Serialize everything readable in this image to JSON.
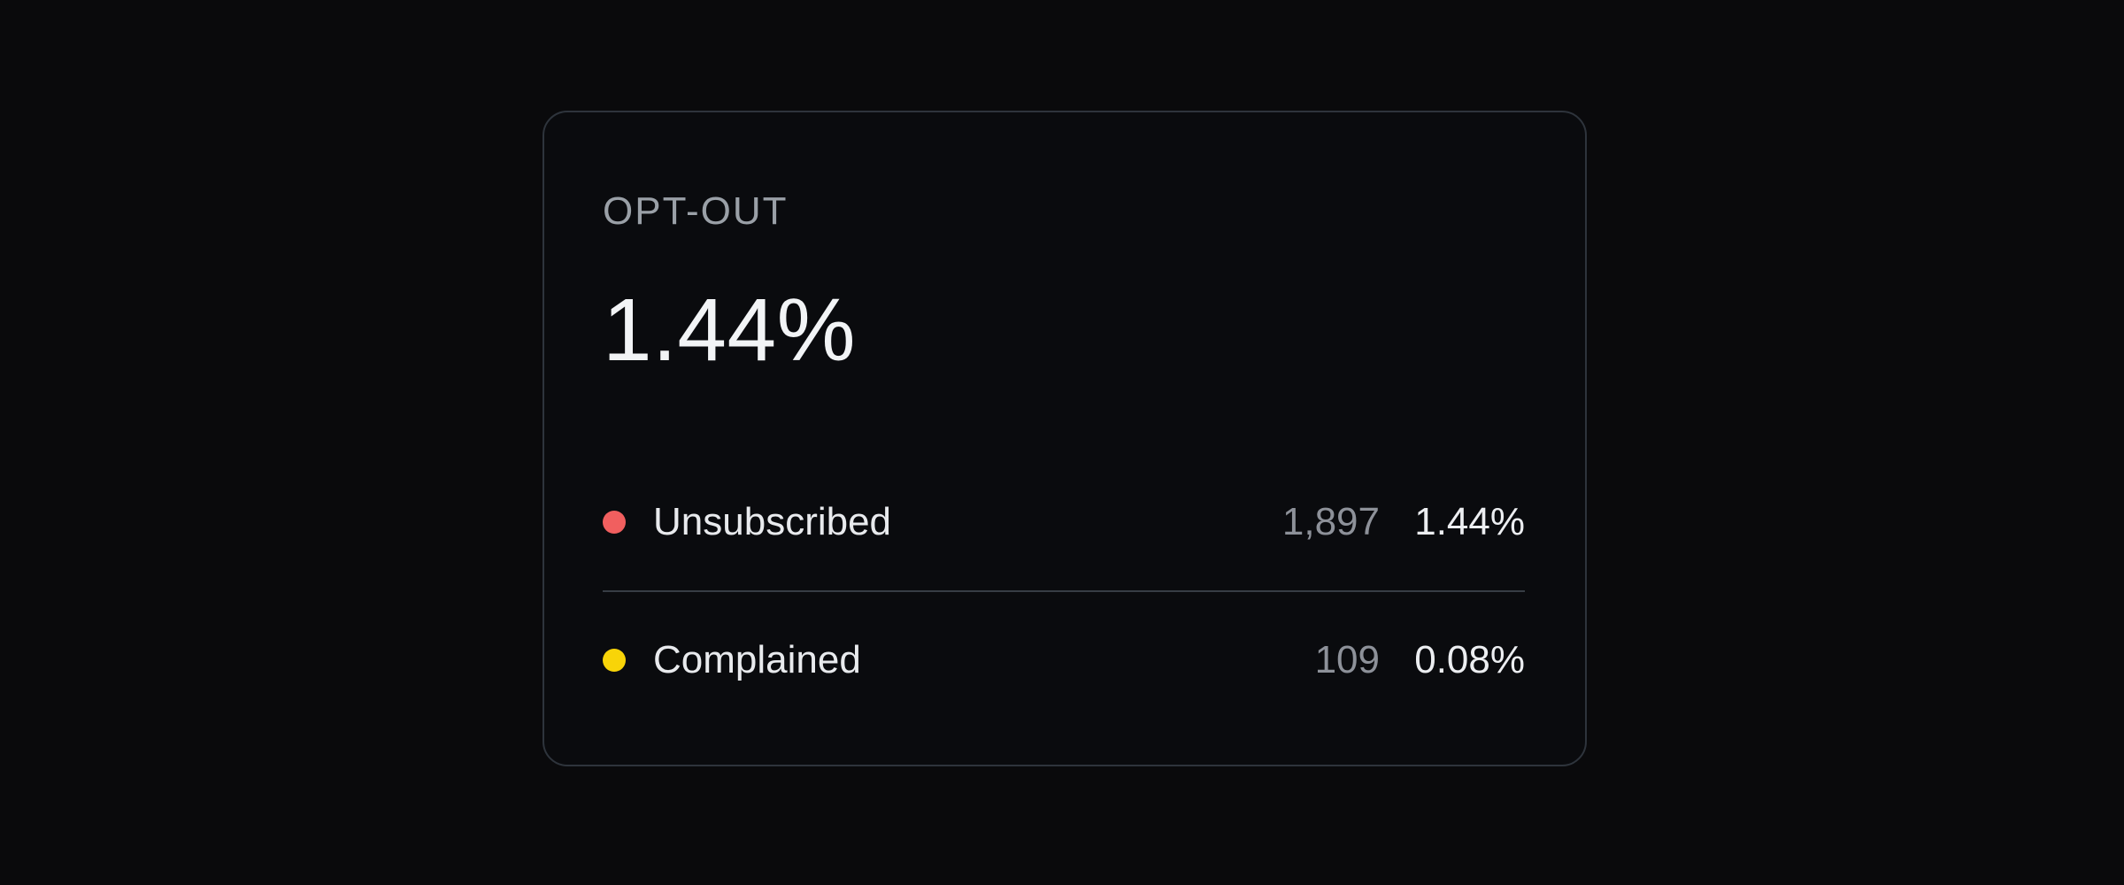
{
  "card": {
    "title": "OPT-OUT",
    "headline_value": "1.44%",
    "colors": {
      "card_border": "#2e343c",
      "divider": "#373d45",
      "unsubscribed_dot": "#f15f5f",
      "complained_dot": "#f8d408"
    },
    "rows": [
      {
        "label": "Unsubscribed",
        "count": "1,897",
        "percent": "1.44%",
        "dot_color": "#f15f5f"
      },
      {
        "label": "Complained",
        "count": "109",
        "percent": "0.08%",
        "dot_color": "#f8d408"
      }
    ]
  }
}
